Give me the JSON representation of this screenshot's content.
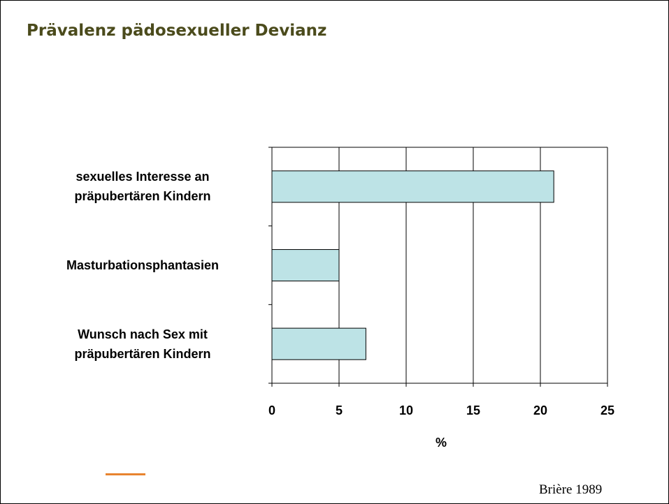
{
  "chart_data": {
    "type": "bar",
    "orientation": "horizontal",
    "title": "Prävalenz pädosexueller Devianz",
    "categories": [
      "sexuelles Interesse an\npräpubertären Kindern",
      "Masturbationsphantasien",
      "Wunsch nach Sex mit\npräpubertären Kindern"
    ],
    "values": [
      21,
      5,
      7
    ],
    "color": "#bde3e6",
    "xlim": [
      0,
      25
    ],
    "xticks": [
      0,
      5,
      10,
      15,
      20,
      25
    ],
    "xlabel": "%",
    "grid": true,
    "source": "Brière 1989"
  }
}
